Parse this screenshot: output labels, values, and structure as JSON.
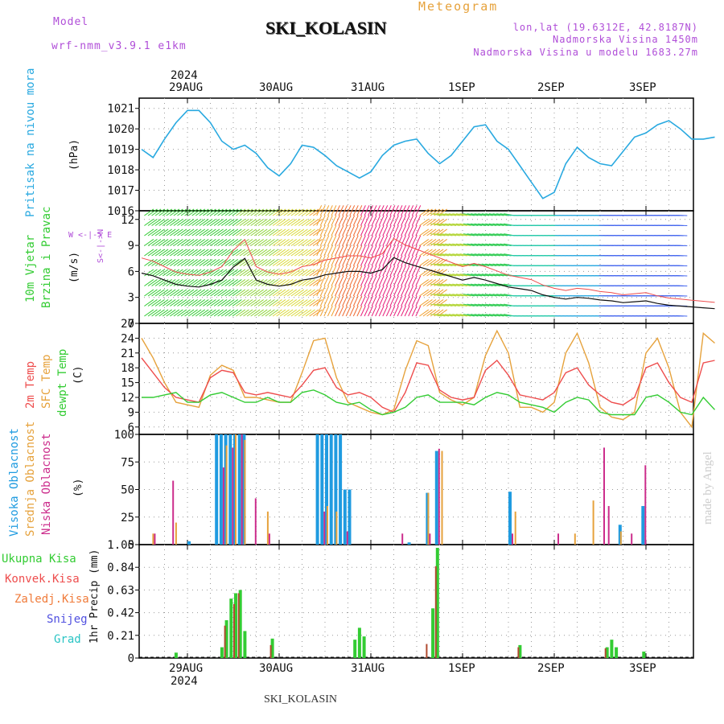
{
  "header": {
    "model_label": "Model",
    "model_name": "wrf-nmm_v3.9.1 e1km",
    "product": "Meteogram",
    "station": "SKI_KOLASIN",
    "coords": "lon,lat (19.6312E, 42.8187N)",
    "elevation": "Nadmorska Visina 1450m",
    "model_elevation": "Nadmorska Visina u modelu 1683.27m"
  },
  "time_axis": {
    "year": "2024",
    "day_labels": [
      "29AUG",
      "30AUG",
      "31AUG",
      "1SEP",
      "2SEP",
      "3SEP"
    ]
  },
  "panels": {
    "pressure": {
      "label": "Pritisak na nivou mora",
      "unit": "(hPa)",
      "ticks": [
        "1021",
        "1020",
        "1019",
        "1018",
        "1017",
        "1016"
      ]
    },
    "wind": {
      "label1": "10m Vjetar",
      "label2": "Brzina i Pravac",
      "unit": "(m/s)",
      "ticks": [
        "12",
        "9",
        "6",
        "3",
        "0"
      ],
      "compass": "W <-|-> E",
      "compass_ns": "S<-|->N"
    },
    "temp": {
      "label1": "2m Temp",
      "label2": "SFC Temp",
      "label3": "dewpt Temp",
      "unit": "(C)",
      "ticks": [
        "27",
        "24",
        "21",
        "18",
        "15",
        "12",
        "9",
        "6"
      ]
    },
    "cloud": {
      "label1": "Visoka Oblacnost",
      "label2": "Srednja Oblacnost",
      "label3": "Niska Oblacnost",
      "unit": "(%)",
      "ticks": [
        "100",
        "75",
        "50",
        "25",
        "0"
      ]
    },
    "precip": {
      "labels": [
        "Ukupna Kisa",
        "Konvek.Kisa",
        "Zaledj.Kisa",
        "Snijeg",
        "Grad"
      ],
      "unit": "1hr Precip (mm)",
      "ticks": [
        "1.05",
        "0.84",
        "0.63",
        "0.42",
        "0.21",
        "0"
      ]
    }
  },
  "footer": {
    "station": "SKI_KOLASIN",
    "watermark": "made by Angel"
  },
  "colors": {
    "pressure": "#29a9e0",
    "t2m": "#ee4d4d",
    "tsfc": "#e6a23c",
    "dewpt": "#33cc33",
    "high": "#1f9be0",
    "mid": "#e6a23c",
    "low": "#cc2d8c",
    "wind": "#111111"
  },
  "chart_data": [
    {
      "type": "line",
      "title": "Pritisak na nivou mora",
      "ylabel": "(hPa)",
      "ylim": [
        1016,
        1021.5
      ],
      "x_start": "2024-08-28 12:00",
      "x_step_hours": 3,
      "series": [
        {
          "name": "Pritisak na nivou mora",
          "values": [
            1019,
            1018.6,
            1019.5,
            1020.3,
            1020.9,
            1020.9,
            1020.3,
            1019.4,
            1019,
            1019.2,
            1018.8,
            1018.1,
            1017.7,
            1018.3,
            1019.2,
            1019.1,
            1018.7,
            1018.2,
            1017.9,
            1017.6,
            1017.9,
            1018.7,
            1019.2,
            1019.4,
            1019.5,
            1018.8,
            1018.3,
            1018.7,
            1019.4,
            1020.1,
            1020.2,
            1019.4,
            1019,
            1018.2,
            1017.4,
            1016.6,
            1016.9,
            1018.3,
            1019.1,
            1018.6,
            1018.3,
            1018.2,
            1018.9,
            1019.6,
            1019.8,
            1020.2,
            1020.4,
            1020,
            1019.5,
            1019.5,
            1019.6
          ]
        }
      ]
    },
    {
      "type": "line",
      "title": "10m Vjetar",
      "ylabel": "(m/s)",
      "ylim": [
        0,
        13
      ],
      "x_start": "2024-08-28 12:00",
      "x_step_hours": 3,
      "series": [
        {
          "name": "Brzina i Pravac",
          "values": [
            5.8,
            5.5,
            5,
            4.5,
            4.3,
            4.2,
            4.5,
            5,
            6.5,
            7.5,
            5,
            4.5,
            4.3,
            4.5,
            5,
            5.2,
            5.6,
            5.8,
            6,
            6,
            5.8,
            6.2,
            7.6,
            7,
            6.6,
            6.2,
            5.8,
            5.4,
            5,
            5.3,
            5,
            4.6,
            4.2,
            4,
            3.8,
            3.3,
            3,
            2.8,
            3,
            2.9,
            2.7,
            2.6,
            2.4,
            2.5,
            2.6,
            2.3,
            2.1,
            2,
            1.9,
            1.8,
            1.7
          ]
        }
      ]
    },
    {
      "type": "line",
      "title": "2m Temp / SFC Temp / dewpt Temp",
      "ylabel": "(C)",
      "ylim": [
        4.5,
        27
      ],
      "x_start": "2024-08-28 12:00",
      "x_step_hours": 3,
      "series": [
        {
          "name": "2m Temp",
          "values": [
            20,
            17,
            14,
            12,
            11.5,
            11,
            16,
            17.5,
            17,
            13,
            12.5,
            13,
            12.5,
            12,
            14.5,
            17.5,
            18,
            14,
            12.5,
            13,
            12,
            10,
            9,
            13,
            19,
            18.5,
            13.5,
            12,
            11.5,
            12,
            17.5,
            19.5,
            16.5,
            12.5,
            12,
            11.5,
            13,
            17,
            18,
            14.5,
            12.5,
            11,
            10.5,
            12,
            18,
            19,
            15,
            12,
            11,
            19,
            19.5
          ]
        },
        {
          "name": "SFC Temp",
          "values": [
            24,
            20,
            15,
            11,
            10.5,
            10,
            16.5,
            18.5,
            17.5,
            12,
            12,
            11.5,
            11,
            11,
            17,
            23.5,
            24,
            16,
            11,
            10,
            9,
            8.5,
            9.5,
            17.5,
            23.5,
            22.5,
            13,
            11.5,
            10.5,
            12,
            20.5,
            25.5,
            21,
            10,
            10,
            9,
            11,
            21,
            25,
            19,
            10,
            8,
            7.5,
            9,
            21,
            24,
            18,
            9,
            6,
            25,
            23
          ]
        },
        {
          "name": "dewpt Temp",
          "values": [
            12,
            12,
            12.5,
            13,
            11,
            11,
            12.5,
            13,
            12,
            11,
            11,
            12,
            11,
            11,
            13,
            13.5,
            12.5,
            11,
            10.5,
            11,
            9.5,
            8.5,
            9,
            10,
            12,
            12.5,
            11,
            11,
            11,
            10.5,
            12,
            13,
            12.5,
            11,
            10.5,
            10,
            9,
            11,
            12,
            11.5,
            9,
            8.5,
            8.5,
            8.5,
            12,
            12.5,
            11,
            9,
            8.5,
            12,
            9.5
          ]
        }
      ]
    },
    {
      "type": "bar",
      "title": "Visoka / Srednja / Niska Oblacnost",
      "ylabel": "(%)",
      "ylim": [
        0,
        100
      ],
      "series": [
        {
          "name": "Visoka Oblacnost",
          "points": [
            [
              29.0,
              3
            ],
            [
              29.3,
              100
            ],
            [
              29.35,
              100
            ],
            [
              29.4,
              100
            ],
            [
              29.45,
              100
            ],
            [
              29.5,
              100
            ],
            [
              29.55,
              100
            ],
            [
              29.6,
              100
            ],
            [
              30.4,
              100
            ],
            [
              30.45,
              100
            ],
            [
              30.5,
              100
            ],
            [
              30.55,
              100
            ],
            [
              30.6,
              100
            ],
            [
              30.65,
              100
            ],
            [
              30.7,
              50
            ],
            [
              30.75,
              50
            ],
            [
              31.4,
              2
            ],
            [
              31.6,
              47
            ],
            [
              31.7,
              85
            ],
            [
              32.5,
              48
            ],
            [
              33.7,
              18
            ],
            [
              33.95,
              35
            ]
          ]
        },
        {
          "name": "Srednja Oblacnost",
          "points": [
            [
              28.6,
              10
            ],
            [
              28.85,
              20
            ],
            [
              29.4,
              90
            ],
            [
              29.5,
              100
            ],
            [
              29.6,
              95
            ],
            [
              29.85,
              30
            ],
            [
              30.5,
              35
            ],
            [
              30.6,
              30
            ],
            [
              31.6,
              47
            ],
            [
              31.75,
              85
            ],
            [
              32.55,
              30
            ],
            [
              33.2,
              10
            ],
            [
              33.4,
              40
            ],
            [
              33.7,
              12
            ]
          ]
        },
        {
          "name": "Niska Oblacnost",
          "points": [
            [
              28.6,
              10
            ],
            [
              28.8,
              58
            ],
            [
              29.35,
              70
            ],
            [
              29.45,
              88
            ],
            [
              29.55,
              100
            ],
            [
              29.7,
              42
            ],
            [
              29.85,
              10
            ],
            [
              30.45,
              30
            ],
            [
              30.7,
              12
            ],
            [
              31.3,
              10
            ],
            [
              31.6,
              10
            ],
            [
              31.7,
              87
            ],
            [
              32.5,
              10
            ],
            [
              33.0,
              10
            ],
            [
              33.5,
              88
            ],
            [
              33.55,
              35
            ],
            [
              33.8,
              10
            ],
            [
              33.95,
              72
            ]
          ]
        }
      ]
    },
    {
      "type": "bar",
      "title": "1hr Precip",
      "ylabel": "1hr Precip (mm)",
      "ylim": [
        0,
        1.05
      ],
      "series": [
        {
          "name": "Ukupna Kisa",
          "points": [
            [
              28.85,
              0.05
            ],
            [
              29.35,
              0.1
            ],
            [
              29.4,
              0.35
            ],
            [
              29.45,
              0.55
            ],
            [
              29.5,
              0.6
            ],
            [
              29.55,
              0.63
            ],
            [
              29.6,
              0.25
            ],
            [
              29.9,
              0.18
            ],
            [
              30.8,
              0.17
            ],
            [
              30.85,
              0.28
            ],
            [
              30.9,
              0.2
            ],
            [
              31.65,
              0.46
            ],
            [
              31.7,
              1.02
            ],
            [
              32.6,
              0.12
            ],
            [
              33.55,
              0.1
            ],
            [
              33.6,
              0.17
            ],
            [
              33.65,
              0.1
            ],
            [
              33.95,
              0.06
            ]
          ]
        },
        {
          "name": "Konvek.Kisa",
          "points": [
            [
              29.4,
              0.3
            ],
            [
              29.5,
              0.5
            ],
            [
              29.55,
              0.6
            ],
            [
              29.9,
              0.12
            ],
            [
              31.6,
              0.13
            ],
            [
              31.7,
              0.85
            ],
            [
              32.6,
              0.1
            ],
            [
              33.55,
              0.09
            ]
          ]
        },
        {
          "name": "Zaledj.Kisa",
          "points": []
        },
        {
          "name": "Snijeg",
          "points": []
        },
        {
          "name": "Grad",
          "points": []
        }
      ]
    }
  ]
}
